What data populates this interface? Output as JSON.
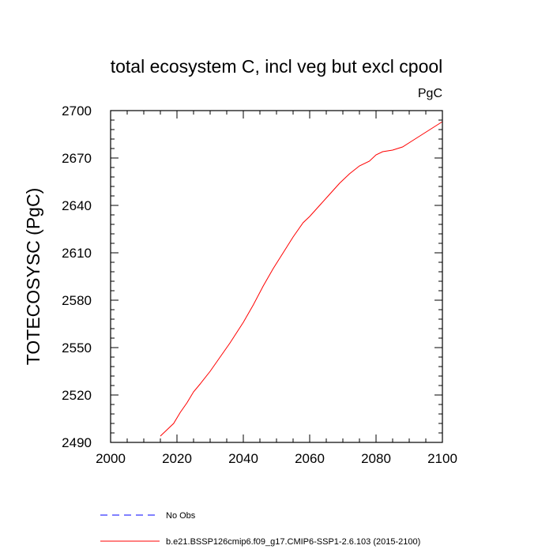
{
  "chart_data": {
    "type": "line",
    "title": "total ecosystem C, incl veg but excl cpool",
    "units_label": "PgC",
    "xlabel": "",
    "ylabel": "TOTECOSYSC  (PgC)",
    "xlim": [
      2000,
      2100
    ],
    "ylim": [
      2490,
      2700
    ],
    "x_ticks": [
      2000,
      2020,
      2040,
      2060,
      2080,
      2100
    ],
    "y_ticks": [
      2490,
      2520,
      2550,
      2580,
      2610,
      2640,
      2670,
      2700
    ],
    "series": [
      {
        "name": "b.e21.BSSP126cmip6.f09_g17.CMIP6-SSP1-2.6.103 (2015-2100)",
        "color": "#ff0000",
        "dash": "solid",
        "x": [
          2015,
          2017,
          2019,
          2021,
          2023,
          2025,
          2027,
          2030,
          2033,
          2036,
          2040,
          2043,
          2046,
          2049,
          2052,
          2055,
          2058,
          2060,
          2063,
          2066,
          2069,
          2072,
          2075,
          2078,
          2080,
          2082,
          2085,
          2088,
          2091,
          2094,
          2097,
          2100
        ],
        "values": [
          2494,
          2498,
          2502,
          2509,
          2515,
          2522,
          2527,
          2535,
          2544,
          2553,
          2566,
          2577,
          2589,
          2600,
          2610,
          2620,
          2629,
          2633,
          2640,
          2647,
          2654,
          2660,
          2665,
          2668,
          2672,
          2674,
          2675,
          2677,
          2681,
          2685,
          2689,
          2693
        ]
      },
      {
        "name": "No Obs",
        "color": "#0000ff",
        "dash": "dashed",
        "x": [],
        "values": []
      }
    ]
  }
}
